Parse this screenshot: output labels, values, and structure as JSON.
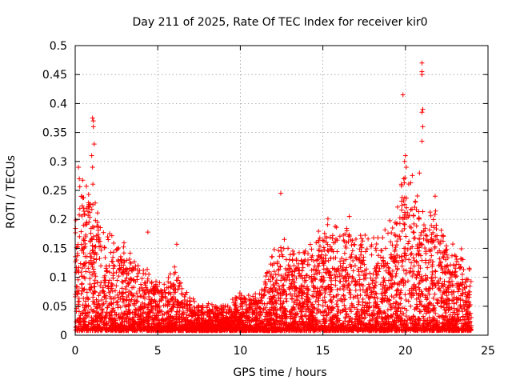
{
  "chart_data": {
    "type": "scatter",
    "title": "Day 211 of 2025, Rate Of TEC Index for receiver kir0",
    "xlabel": "GPS time / hours",
    "ylabel": "ROTI / TECUs",
    "xlim": [
      0,
      25
    ],
    "ylim": [
      0,
      0.5
    ],
    "xticks": [
      "0",
      "5",
      "10",
      "15",
      "20",
      "25"
    ],
    "yticks": [
      "0",
      "0.05",
      "0.1",
      "0.15",
      "0.2",
      "0.25",
      "0.3",
      "0.35",
      "0.4",
      "0.45",
      "0.5"
    ],
    "grid": true,
    "marker": "plus",
    "color": "#ff0000",
    "x_extent": [
      0,
      24
    ],
    "envelope": {
      "description_hours": [
        0,
        0.5,
        1,
        1.5,
        2,
        2.5,
        3,
        3.5,
        4,
        4.5,
        5,
        5.5,
        6,
        6.5,
        7,
        7.5,
        8,
        8.5,
        9,
        9.5,
        10,
        10.5,
        11,
        11.5,
        12,
        12.5,
        13,
        13.5,
        14,
        14.5,
        15,
        15.5,
        16,
        16.5,
        17,
        17.5,
        18,
        18.5,
        19,
        19.5,
        20,
        20.5,
        21,
        21.5,
        22,
        22.5,
        23,
        23.5,
        24
      ],
      "typical_max": [
        0.2,
        0.24,
        0.22,
        0.17,
        0.15,
        0.14,
        0.13,
        0.12,
        0.1,
        0.09,
        0.08,
        0.07,
        0.1,
        0.07,
        0.05,
        0.04,
        0.04,
        0.04,
        0.04,
        0.05,
        0.06,
        0.06,
        0.06,
        0.08,
        0.12,
        0.14,
        0.13,
        0.12,
        0.14,
        0.15,
        0.18,
        0.18,
        0.17,
        0.17,
        0.16,
        0.14,
        0.15,
        0.16,
        0.17,
        0.2,
        0.25,
        0.22,
        0.2,
        0.2,
        0.18,
        0.15,
        0.14,
        0.12,
        0.1
      ]
    },
    "outliers": [
      {
        "x": 1.05,
        "y": 0.375
      },
      {
        "x": 1.1,
        "y": 0.37
      },
      {
        "x": 1.1,
        "y": 0.36
      },
      {
        "x": 1.15,
        "y": 0.33
      },
      {
        "x": 1.0,
        "y": 0.31
      },
      {
        "x": 1.05,
        "y": 0.29
      },
      {
        "x": 0.2,
        "y": 0.29
      },
      {
        "x": 0.25,
        "y": 0.27
      },
      {
        "x": 19.85,
        "y": 0.415
      },
      {
        "x": 20.0,
        "y": 0.31
      },
      {
        "x": 19.95,
        "y": 0.3
      },
      {
        "x": 20.05,
        "y": 0.29
      },
      {
        "x": 19.9,
        "y": 0.27
      },
      {
        "x": 21.0,
        "y": 0.47
      },
      {
        "x": 21.0,
        "y": 0.455
      },
      {
        "x": 21.0,
        "y": 0.45
      },
      {
        "x": 21.05,
        "y": 0.39
      },
      {
        "x": 21.0,
        "y": 0.385
      },
      {
        "x": 21.05,
        "y": 0.36
      },
      {
        "x": 21.0,
        "y": 0.335
      },
      {
        "x": 20.85,
        "y": 0.28
      },
      {
        "x": 12.45,
        "y": 0.245
      },
      {
        "x": 4.4,
        "y": 0.178
      },
      {
        "x": 6.15,
        "y": 0.157
      },
      {
        "x": 16.6,
        "y": 0.205
      },
      {
        "x": 21.8,
        "y": 0.24
      }
    ]
  }
}
